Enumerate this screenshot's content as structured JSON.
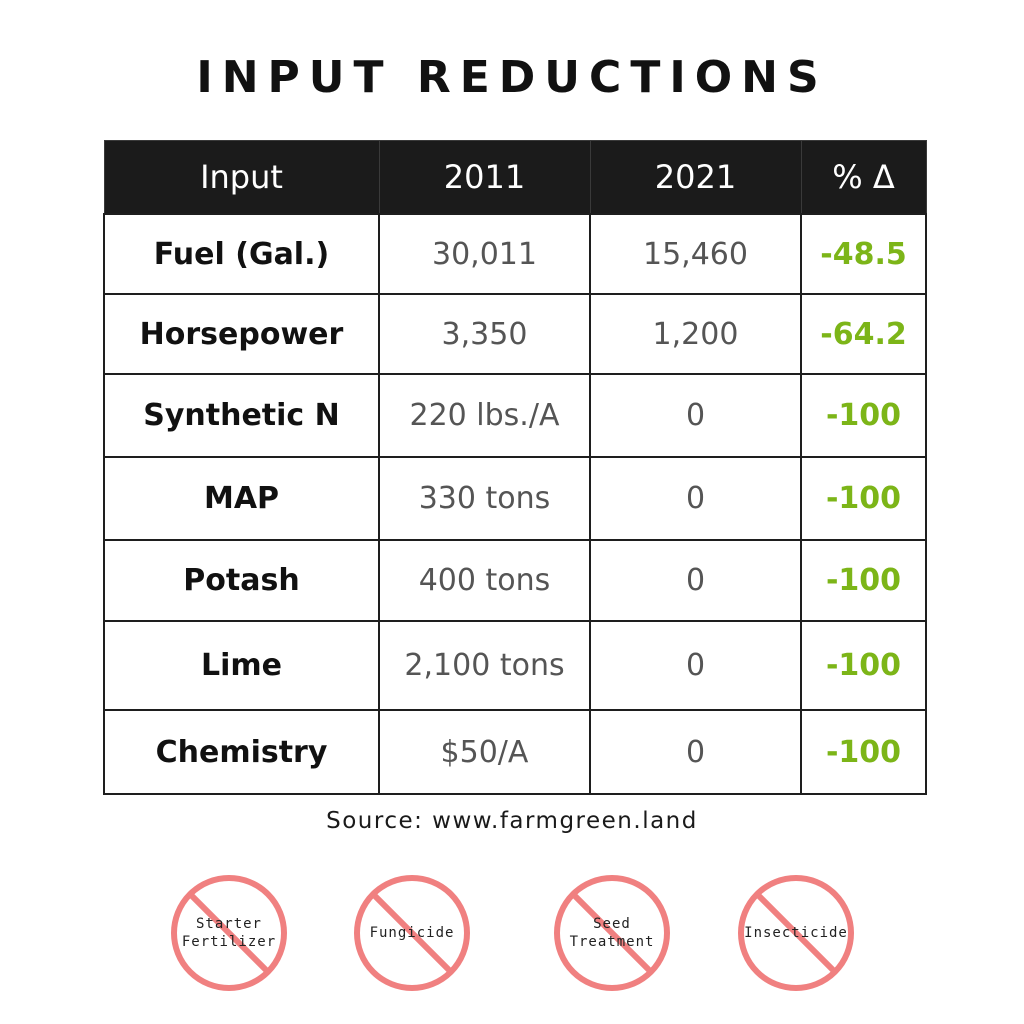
{
  "title": "INPUT REDUCTIONS",
  "chart_data": {
    "type": "table",
    "columns": [
      "Input",
      "2011",
      "2021",
      "% Δ"
    ],
    "rows": [
      {
        "input": "Fuel (Gal.)",
        "y2011": "30,011",
        "y2021": "15,460",
        "pct": "-48.5"
      },
      {
        "input": "Horsepower",
        "y2011": "3,350",
        "y2021": "1,200",
        "pct": "-64.2"
      },
      {
        "input": "Synthetic N",
        "y2011": "220 lbs./A",
        "y2021": "0",
        "pct": "-100"
      },
      {
        "input": "MAP",
        "y2011": "330 tons",
        "y2021": "0",
        "pct": "-100"
      },
      {
        "input": "Potash",
        "y2011": "400 tons",
        "y2021": "0",
        "pct": "-100"
      },
      {
        "input": "Lime",
        "y2011": "2,100 tons",
        "y2021": "0",
        "pct": "-100"
      },
      {
        "input": "Chemistry",
        "y2011": "$50/A",
        "y2021": "0",
        "pct": "-100"
      }
    ]
  },
  "source": "Source: www.farmgreen.land",
  "badges": [
    {
      "label": "Starter\nFertilizer",
      "icon": "prohibited-icon"
    },
    {
      "label": "Fungicide",
      "icon": "prohibited-icon"
    },
    {
      "label": "Seed\nTreatment",
      "icon": "prohibited-icon"
    },
    {
      "label": "Insecticide",
      "icon": "prohibited-icon"
    }
  ],
  "colors": {
    "header_bg": "#1b1b1b",
    "pct_green": "#7cb518",
    "prohibited_red": "#f08080"
  }
}
